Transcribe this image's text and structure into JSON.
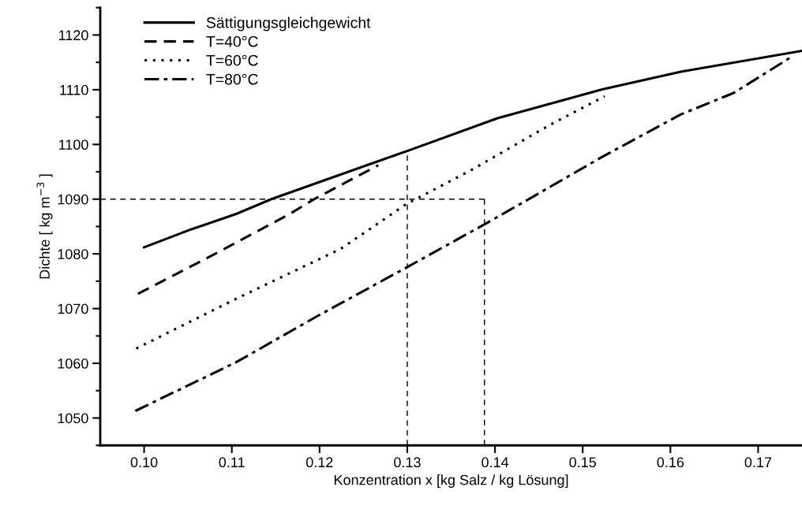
{
  "chart_data": {
    "type": "line",
    "xlabel": "Konzentration x [kg Salz / kg Lösung]",
    "ylabel": "Dichte [ kg m$^{−3}$ ]",
    "xlim": [
      0.095,
      0.175
    ],
    "xticks": [
      {
        "value": 0.1,
        "label": "0.10"
      },
      0.11,
      0.12,
      0.13,
      0.14,
      0.15,
      0.16,
      0.17
    ],
    "ylim": [
      1045,
      1125
    ],
    "yticks": [
      1050,
      1060,
      1070,
      1080,
      1090,
      1100,
      1110,
      1120
    ],
    "legend": "top left",
    "grid": false,
    "marker": "none",
    "series": [
      {
        "name": "Sättigungsgleichgewicht",
        "color": "#000000",
        "line_style": "solid",
        "x": [
          0.1,
          0.1054,
          0.1105,
          0.1145,
          0.1224,
          0.13,
          0.1403,
          0.1523,
          0.1612,
          0.175
        ],
        "values": [
          1081.2,
          1084.5,
          1087.3,
          1090.0,
          1094.5,
          1098.8,
          1104.8,
          1110.1,
          1113.3,
          1117.1
        ]
      },
      {
        "name": "T=40°C",
        "color": "#000000",
        "line_style": "dashed",
        "x": [
          0.0993,
          0.1075,
          0.1165,
          0.1195,
          0.1267
        ],
        "values": [
          1072.7,
          1079.5,
          1087.2,
          1090.1,
          1096.2
        ]
      },
      {
        "name": "T=60°C",
        "color": "#000000",
        "line_style": "dotted",
        "x": [
          0.0991,
          0.1105,
          0.1224,
          0.1299,
          0.1374,
          0.1463,
          0.1525
        ],
        "values": [
          1062.7,
          1071.8,
          1080.9,
          1089.1,
          1095.4,
          1103.6,
          1108.8
        ]
      },
      {
        "name": "T=80°C",
        "color": "#000000",
        "line_style": "dashdot",
        "x": [
          0.099,
          0.1105,
          0.1195,
          0.1299,
          0.1387,
          0.1445,
          0.1523,
          0.1612,
          0.1672,
          0.1736
        ],
        "values": [
          1051.3,
          1060.2,
          1068.4,
          1077.5,
          1085.3,
          1090.6,
          1097.8,
          1105.5,
          1109.4,
          1115.8
        ]
      },
      {
        "color": "#000000",
        "line_style": "dashed",
        "x": [
          0.095,
          0.1388
        ],
        "values": [
          1090,
          1090
        ]
      },
      {
        "color": "#000000",
        "line_style": "dashed",
        "x": [
          0.13,
          0.13
        ],
        "values": [
          1045,
          1098
        ]
      },
      {
        "color": "#000000",
        "line_style": "dashed",
        "x": [
          0.1388,
          0.1388
        ],
        "values": [
          1045,
          1090
        ]
      }
    ]
  }
}
